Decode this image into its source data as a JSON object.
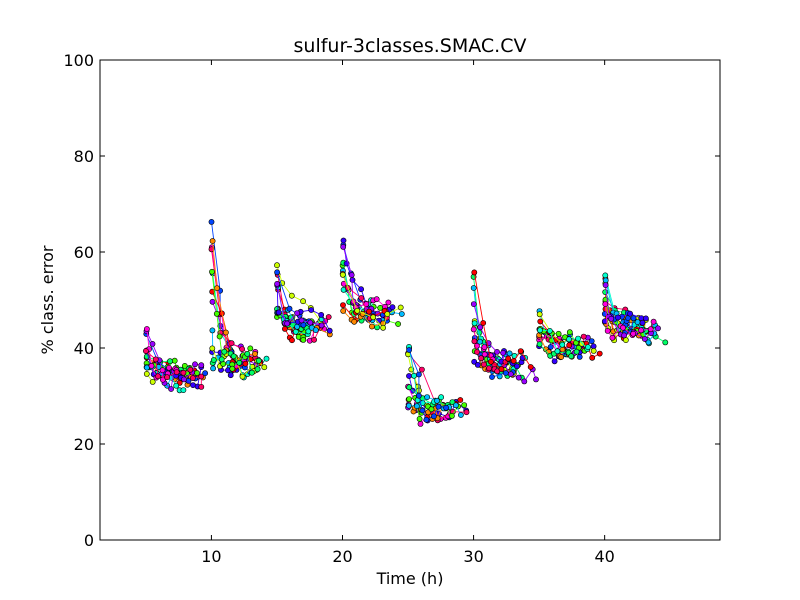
{
  "chart_data": {
    "type": "scatter",
    "title": "sulfur-3classes.SMAC.CV",
    "xlabel": "Time (h)",
    "ylabel": "% class. error",
    "xlim": [
      1.5,
      48.8
    ],
    "ylim": [
      0,
      100
    ],
    "xticks": [
      10,
      20,
      30,
      40
    ],
    "yticks": [
      0,
      20,
      40,
      60,
      80,
      100
    ],
    "grid": false,
    "legend": "none",
    "segments": [
      {
        "start": 5,
        "end": 10,
        "base": 34.5,
        "peak": 46
      },
      {
        "start": 10,
        "end": 15,
        "base": 36.5,
        "peak": 69
      },
      {
        "start": 15,
        "end": 20,
        "base": 44.5,
        "peak": 59
      },
      {
        "start": 20,
        "end": 25,
        "base": 47,
        "peak": 63
      },
      {
        "start": 25,
        "end": 30,
        "base": 27,
        "peak": 41
      },
      {
        "start": 30,
        "end": 35,
        "base": 36.5,
        "peak": 57
      },
      {
        "start": 35,
        "end": 40,
        "base": 40,
        "peak": 49
      },
      {
        "start": 40,
        "end": 45,
        "base": 44,
        "peak": 55.5
      }
    ],
    "palette": [
      "#ff0000",
      "#ff8800",
      "#ccff00",
      "#44ff00",
      "#00ff66",
      "#00ffcc",
      "#00bbff",
      "#0044ff",
      "#3300ff",
      "#9900ff",
      "#ff00dd",
      "#ff0066"
    ]
  }
}
